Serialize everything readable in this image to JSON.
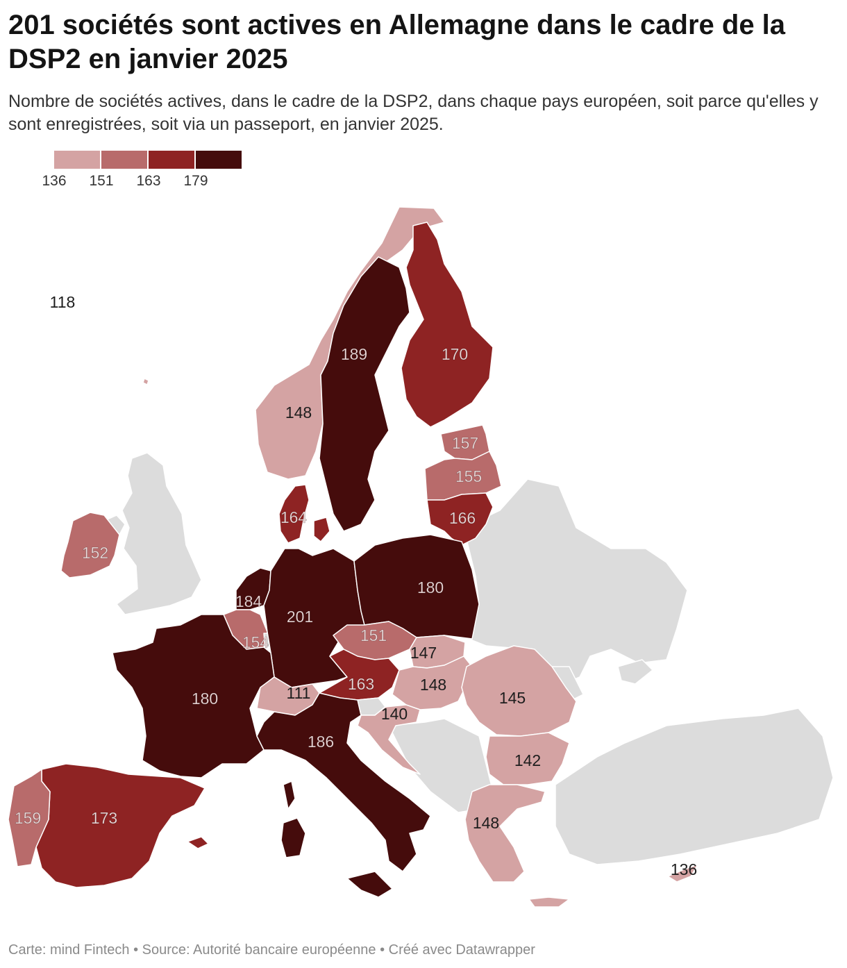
{
  "header": {
    "title": "201 sociétés sont actives en Allemagne dans le cadre de la DSP2 en janvier 2025",
    "subtitle": "Nombre de sociétés actives, dans le cadre de la DSP2, dans chaque pays européen, soit parce qu'elles y sont enregistrées, soit via un passeport, en janvier 2025."
  },
  "legend": {
    "ticks": [
      "136",
      "151",
      "163",
      "179"
    ],
    "colors": [
      "#d4a3a3",
      "#b86b6b",
      "#8e2323",
      "#450c0c"
    ]
  },
  "colors": {
    "no_data": "#dcdcdc",
    "border": "#ffffff",
    "label_light": "#f3dede",
    "label_dark": "#1d1d1d"
  },
  "map": {
    "regions": [
      {
        "name": "Iceland",
        "value": 118,
        "label": "118"
      },
      {
        "name": "Norway",
        "value": 148,
        "label": "148"
      },
      {
        "name": "Sweden",
        "value": 189,
        "label": "189"
      },
      {
        "name": "Finland",
        "value": 170,
        "label": "170"
      },
      {
        "name": "Estonia",
        "value": 157,
        "label": "157"
      },
      {
        "name": "Latvia",
        "value": 155,
        "label": "155"
      },
      {
        "name": "Lithuania",
        "value": 166,
        "label": "166"
      },
      {
        "name": "Denmark",
        "value": 164,
        "label": "164"
      },
      {
        "name": "Ireland",
        "value": 152,
        "label": "152"
      },
      {
        "name": "Netherlands",
        "value": 184,
        "label": "184"
      },
      {
        "name": "Belgium",
        "value": 154,
        "label": "154"
      },
      {
        "name": "Luxembourg",
        "value": null,
        "label": ""
      },
      {
        "name": "Germany",
        "value": 201,
        "label": "201"
      },
      {
        "name": "Poland",
        "value": 180,
        "label": "180"
      },
      {
        "name": "Czechia",
        "value": 151,
        "label": "151"
      },
      {
        "name": "Slovakia",
        "value": 147,
        "label": "147"
      },
      {
        "name": "Austria",
        "value": 163,
        "label": "163"
      },
      {
        "name": "Hungary",
        "value": 148,
        "label": "148"
      },
      {
        "name": "Slovenia",
        "value": null,
        "label": ""
      },
      {
        "name": "Croatia",
        "value": 140,
        "label": "140"
      },
      {
        "name": "Romania",
        "value": 145,
        "label": "145"
      },
      {
        "name": "Bulgaria",
        "value": 142,
        "label": "142"
      },
      {
        "name": "Greece",
        "value": 148,
        "label": "148"
      },
      {
        "name": "Cyprus",
        "value": 136,
        "label": "136"
      },
      {
        "name": "Malta",
        "value": null,
        "label": ""
      },
      {
        "name": "France",
        "value": 180,
        "label": "180"
      },
      {
        "name": "Switzerland",
        "value": 111,
        "label": "111"
      },
      {
        "name": "Italy",
        "value": 186,
        "label": "186"
      },
      {
        "name": "Spain",
        "value": 173,
        "label": "173"
      },
      {
        "name": "Portugal",
        "value": 159,
        "label": "159"
      }
    ]
  },
  "footer": {
    "text": "Carte: mind Fintech • Source: Autorité bancaire européenne • Créé avec Datawrapper"
  }
}
